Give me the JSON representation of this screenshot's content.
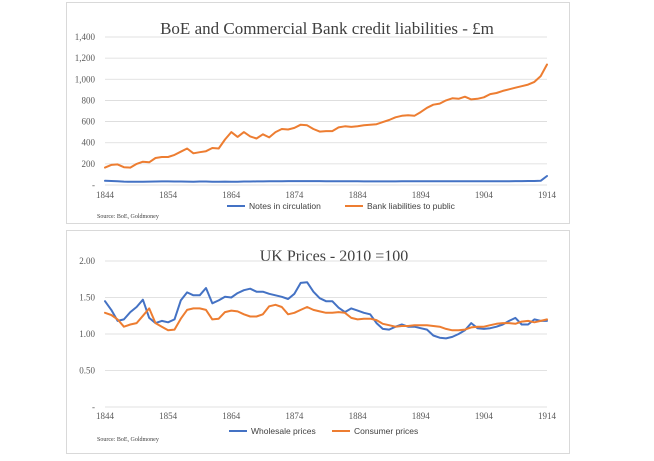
{
  "chart_data": [
    {
      "type": "line",
      "title": "BoE and Commercial Bank credit liabilities - £m",
      "x_tick_labels": [
        "1844",
        "1854",
        "1864",
        "1874",
        "1884",
        "1894",
        "1904",
        "1914"
      ],
      "y_tick_labels": [
        "-",
        "200",
        "400",
        "600",
        "800",
        "1,000",
        "1,200",
        "1,400"
      ],
      "xlim": [
        1844,
        1914
      ],
      "ylim": [
        0,
        1400
      ],
      "xlabel": "",
      "ylabel": "",
      "legend_position": "bottom",
      "source": "Source: BoE, Goldmoney",
      "x": [
        1844,
        1845,
        1846,
        1847,
        1848,
        1849,
        1850,
        1851,
        1852,
        1853,
        1854,
        1855,
        1856,
        1857,
        1858,
        1859,
        1860,
        1861,
        1862,
        1863,
        1864,
        1865,
        1866,
        1867,
        1868,
        1869,
        1870,
        1871,
        1872,
        1873,
        1874,
        1875,
        1876,
        1877,
        1878,
        1879,
        1880,
        1881,
        1882,
        1883,
        1884,
        1885,
        1886,
        1887,
        1888,
        1889,
        1890,
        1891,
        1892,
        1893,
        1894,
        1895,
        1896,
        1897,
        1898,
        1899,
        1900,
        1901,
        1902,
        1903,
        1904,
        1905,
        1906,
        1907,
        1908,
        1909,
        1910,
        1911,
        1912,
        1913,
        1914
      ],
      "series": [
        {
          "name": "Notes in circulation",
          "color": "#4472C4",
          "values": [
            40,
            38,
            36,
            32,
            30,
            30,
            31,
            32,
            33,
            34,
            34,
            33,
            33,
            32,
            31,
            33,
            33,
            31,
            31,
            32,
            30,
            31,
            33,
            33,
            34,
            34,
            35,
            36,
            36,
            37,
            37,
            37,
            37,
            37,
            37,
            36,
            36,
            36,
            35,
            35,
            35,
            34,
            34,
            34,
            34,
            34,
            34,
            35,
            35,
            35,
            35,
            36,
            36,
            35,
            35,
            35,
            36,
            35,
            35,
            35,
            35,
            35,
            36,
            36,
            36,
            37,
            37,
            38,
            38,
            40,
            85
          ]
        },
        {
          "name": "Bank liabilities to public",
          "color": "#ED7D31",
          "values": [
            165,
            190,
            195,
            168,
            165,
            200,
            220,
            215,
            255,
            265,
            265,
            285,
            315,
            345,
            300,
            310,
            320,
            350,
            345,
            430,
            500,
            455,
            500,
            460,
            440,
            480,
            450,
            500,
            530,
            525,
            540,
            570,
            565,
            530,
            505,
            510,
            510,
            545,
            555,
            550,
            555,
            565,
            570,
            575,
            595,
            615,
            640,
            655,
            660,
            655,
            690,
            730,
            760,
            770,
            800,
            820,
            815,
            835,
            810,
            815,
            830,
            860,
            870,
            890,
            905,
            920,
            935,
            950,
            975,
            1030,
            1140
          ]
        }
      ]
    },
    {
      "type": "line",
      "title": "UK Prices - 2010 =100",
      "x_tick_labels": [
        "1844",
        "1854",
        "1864",
        "1874",
        "1884",
        "1894",
        "1904",
        "1914"
      ],
      "y_tick_labels": [
        "-",
        "0.50",
        "1.00",
        "1.50",
        "2.00"
      ],
      "xlim": [
        1844,
        1914
      ],
      "ylim": [
        0,
        2
      ],
      "xlabel": "",
      "ylabel": "",
      "legend_position": "bottom",
      "source": "Source: BoE, Goldmoney",
      "x": [
        1844,
        1845,
        1846,
        1847,
        1848,
        1849,
        1850,
        1851,
        1852,
        1853,
        1854,
        1855,
        1856,
        1857,
        1858,
        1859,
        1860,
        1861,
        1862,
        1863,
        1864,
        1865,
        1866,
        1867,
        1868,
        1869,
        1870,
        1871,
        1872,
        1873,
        1874,
        1875,
        1876,
        1877,
        1878,
        1879,
        1880,
        1881,
        1882,
        1883,
        1884,
        1885,
        1886,
        1887,
        1888,
        1889,
        1890,
        1891,
        1892,
        1893,
        1894,
        1895,
        1896,
        1897,
        1898,
        1899,
        1900,
        1901,
        1902,
        1903,
        1904,
        1905,
        1906,
        1907,
        1908,
        1909,
        1910,
        1911,
        1912,
        1913,
        1914
      ],
      "series": [
        {
          "name": "Wholesale prices",
          "color": "#4472C4",
          "values": [
            1.45,
            1.33,
            1.18,
            1.2,
            1.3,
            1.37,
            1.47,
            1.22,
            1.15,
            1.18,
            1.16,
            1.2,
            1.46,
            1.57,
            1.53,
            1.53,
            1.63,
            1.42,
            1.46,
            1.51,
            1.5,
            1.56,
            1.6,
            1.62,
            1.58,
            1.58,
            1.55,
            1.53,
            1.51,
            1.48,
            1.55,
            1.7,
            1.71,
            1.58,
            1.49,
            1.45,
            1.45,
            1.36,
            1.3,
            1.35,
            1.32,
            1.29,
            1.27,
            1.15,
            1.07,
            1.06,
            1.1,
            1.13,
            1.1,
            1.1,
            1.08,
            1.06,
            0.98,
            0.95,
            0.94,
            0.96,
            1.0,
            1.05,
            1.15,
            1.08,
            1.07,
            1.08,
            1.1,
            1.13,
            1.18,
            1.22,
            1.13,
            1.13,
            1.2,
            1.18,
            1.18
          ]
        },
        {
          "name": "Consumer prices",
          "color": "#ED7D31",
          "values": [
            1.29,
            1.26,
            1.2,
            1.1,
            1.13,
            1.15,
            1.25,
            1.35,
            1.15,
            1.1,
            1.05,
            1.06,
            1.21,
            1.33,
            1.35,
            1.35,
            1.33,
            1.2,
            1.21,
            1.3,
            1.32,
            1.31,
            1.27,
            1.24,
            1.24,
            1.27,
            1.38,
            1.4,
            1.37,
            1.27,
            1.29,
            1.33,
            1.37,
            1.33,
            1.31,
            1.29,
            1.29,
            1.3,
            1.29,
            1.22,
            1.2,
            1.21,
            1.21,
            1.19,
            1.14,
            1.12,
            1.1,
            1.11,
            1.11,
            1.12,
            1.12,
            1.12,
            1.11,
            1.1,
            1.07,
            1.05,
            1.05,
            1.06,
            1.09,
            1.1,
            1.1,
            1.12,
            1.14,
            1.15,
            1.15,
            1.14,
            1.17,
            1.18,
            1.16,
            1.18,
            1.2
          ]
        }
      ]
    }
  ]
}
